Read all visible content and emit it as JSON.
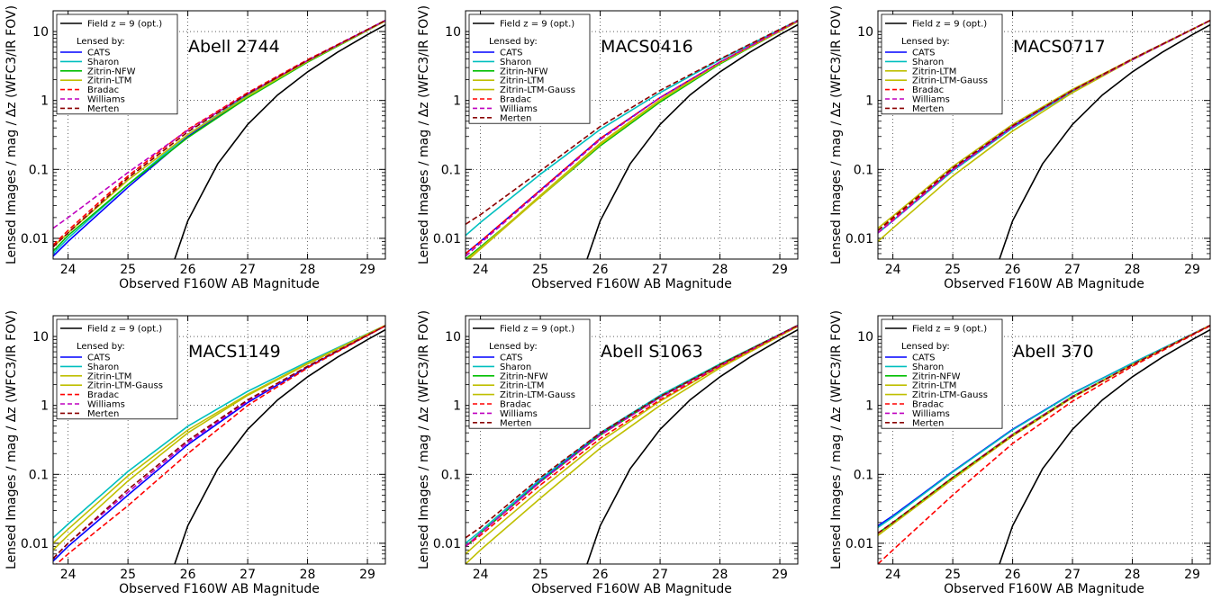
{
  "figure": {
    "xlabel": "Observed F160W AB Magnitude",
    "ylabel": "Lensed Images / mag / Δz  (WFC3/IR FOV)",
    "legend_field": "Field z = 9 (opt.)",
    "legend_header": "Lensed by:"
  },
  "chart_data": [
    {
      "type": "line",
      "title": "Abell 2744",
      "xlabel": "Observed F160W AB Magnitude",
      "ylabel": "Lensed Images / mag / Δz  (WFC3/IR FOV)",
      "xlim": [
        23.75,
        29.3
      ],
      "ylim": [
        0.005,
        20
      ],
      "yscale": "log",
      "xticks": [
        "24",
        "25",
        "26",
        "27",
        "28",
        "29"
      ],
      "yticks": [
        "0.01",
        "0.1",
        "1",
        "10"
      ],
      "grid": true,
      "legend": "top-left",
      "x": [
        23.75,
        24,
        25,
        26,
        27,
        28,
        29.3
      ],
      "field": {
        "name": "Field z = 9 (opt.)",
        "color": "#000000",
        "x": [
          25.78,
          26,
          26.5,
          27,
          27.5,
          28,
          28.5,
          29,
          29.3
        ],
        "values": [
          0.005,
          0.018,
          0.12,
          0.45,
          1.2,
          2.6,
          5.0,
          9.0,
          12.5
        ]
      },
      "series": [
        {
          "name": "CATS",
          "color": "#0000ff",
          "dash": false,
          "values": [
            0.0055,
            0.009,
            0.055,
            0.3,
            1.15,
            3.7,
            14.5
          ]
        },
        {
          "name": "Sharon",
          "color": "#00bfbf",
          "dash": false,
          "values": [
            0.006,
            0.01,
            0.06,
            0.32,
            1.2,
            3.8,
            14.5
          ]
        },
        {
          "name": "Zitrin-NFW",
          "color": "#00bf00",
          "dash": false,
          "values": [
            0.0065,
            0.011,
            0.06,
            0.29,
            1.1,
            3.6,
            14.3
          ]
        },
        {
          "name": "Zitrin-LTM",
          "color": "#bfbf00",
          "dash": false,
          "values": [
            0.0075,
            0.012,
            0.07,
            0.32,
            1.15,
            3.7,
            14.3
          ]
        },
        {
          "name": "Bradac",
          "color": "#ff0000",
          "dash": true,
          "values": [
            0.008,
            0.013,
            0.08,
            0.38,
            1.3,
            3.9,
            14.5
          ]
        },
        {
          "name": "Williams",
          "color": "#bf00bf",
          "dash": true,
          "values": [
            0.014,
            0.02,
            0.09,
            0.37,
            1.25,
            3.8,
            14.5
          ]
        },
        {
          "name": "Merten",
          "color": "#8b0000",
          "dash": true,
          "values": [
            0.0075,
            0.012,
            0.075,
            0.35,
            1.25,
            3.8,
            14.5
          ]
        }
      ]
    },
    {
      "type": "line",
      "title": "MACS0416",
      "xlabel": "Observed F160W AB Magnitude",
      "ylabel": "Lensed Images / mag / Δz  (WFC3/IR FOV)",
      "xlim": [
        23.75,
        29.3
      ],
      "ylim": [
        0.005,
        20
      ],
      "yscale": "log",
      "xticks": [
        "24",
        "25",
        "26",
        "27",
        "28",
        "29"
      ],
      "yticks": [
        "0.01",
        "0.1",
        "1",
        "10"
      ],
      "grid": true,
      "legend": "top-left",
      "x": [
        23.75,
        24,
        25,
        26,
        27,
        28,
        29.3
      ],
      "field": {
        "name": "Field z = 9 (opt.)",
        "color": "#000000",
        "x": [
          25.78,
          26,
          26.5,
          27,
          27.5,
          28,
          28.5,
          29,
          29.3
        ],
        "values": [
          0.005,
          0.018,
          0.12,
          0.45,
          1.2,
          2.6,
          5.0,
          9.0,
          12.5
        ]
      },
      "series": [
        {
          "name": "CATS",
          "color": "#0000ff",
          "dash": false,
          "values": [
            0.006,
            0.009,
            0.05,
            0.28,
            1.1,
            3.6,
            14.3
          ]
        },
        {
          "name": "Sharon",
          "color": "#00bfbf",
          "dash": false,
          "values": [
            0.011,
            0.017,
            0.085,
            0.38,
            1.3,
            3.9,
            14.5
          ]
        },
        {
          "name": "Zitrin-NFW",
          "color": "#00bf00",
          "dash": false,
          "values": [
            0.005,
            0.0075,
            0.04,
            0.22,
            0.95,
            3.4,
            14.0
          ]
        },
        {
          "name": "Zitrin-LTM",
          "color": "#bfbf00",
          "dash": false,
          "values": [
            0.0045,
            0.007,
            0.04,
            0.23,
            1.0,
            3.5,
            14.0
          ]
        },
        {
          "name": "Zitrin-LTM-Gauss",
          "color": "#bfbf00",
          "dash": false,
          "values": [
            0.0048,
            0.0072,
            0.042,
            0.24,
            1.02,
            3.5,
            14.0
          ]
        },
        {
          "name": "Bradac",
          "color": "#ff0000",
          "dash": true,
          "values": [
            0.006,
            0.009,
            0.05,
            0.28,
            1.1,
            3.6,
            14.3
          ]
        },
        {
          "name": "Williams",
          "color": "#bf00bf",
          "dash": true,
          "values": [
            0.0055,
            0.0085,
            0.048,
            0.27,
            1.1,
            3.6,
            14.3
          ]
        },
        {
          "name": "Merten",
          "color": "#8b0000",
          "dash": true,
          "values": [
            0.016,
            0.022,
            0.095,
            0.42,
            1.4,
            4.0,
            14.5
          ]
        }
      ]
    },
    {
      "type": "line",
      "title": "MACS0717",
      "xlabel": "Observed F160W AB Magnitude",
      "ylabel": "Lensed Images / mag / Δz  (WFC3/IR FOV)",
      "xlim": [
        23.75,
        29.3
      ],
      "ylim": [
        0.005,
        20
      ],
      "yscale": "log",
      "xticks": [
        "24",
        "25",
        "26",
        "27",
        "28",
        "29"
      ],
      "yticks": [
        "0.01",
        "0.1",
        "1",
        "10"
      ],
      "grid": true,
      "legend": "top-left",
      "x": [
        23.75,
        24,
        25,
        26,
        27,
        28,
        29.3
      ],
      "field": {
        "name": "Field z = 9 (opt.)",
        "color": "#000000",
        "x": [
          25.78,
          26,
          26.5,
          27,
          27.5,
          28,
          28.5,
          29,
          29.3
        ],
        "values": [
          0.005,
          0.018,
          0.12,
          0.45,
          1.2,
          2.6,
          5.0,
          9.0,
          12.5
        ]
      },
      "series": [
        {
          "name": "CATS",
          "color": "#0000ff",
          "dash": false,
          "values": [
            0.012,
            0.018,
            0.1,
            0.42,
            1.4,
            4.0,
            14.5
          ]
        },
        {
          "name": "Sharon",
          "color": "#00bfbf",
          "dash": false,
          "values": [
            0.012,
            0.018,
            0.095,
            0.4,
            1.35,
            3.9,
            14.5
          ]
        },
        {
          "name": "Zitrin-LTM",
          "color": "#bfbf00",
          "dash": false,
          "values": [
            0.014,
            0.021,
            0.11,
            0.45,
            1.45,
            4.0,
            14.5
          ]
        },
        {
          "name": "Zitrin-LTM-Gauss",
          "color": "#bfbf00",
          "dash": false,
          "values": [
            0.009,
            0.014,
            0.08,
            0.36,
            1.3,
            3.9,
            14.5
          ]
        },
        {
          "name": "Bradac",
          "color": "#ff0000",
          "dash": true,
          "values": [
            0.013,
            0.019,
            0.1,
            0.42,
            1.4,
            4.0,
            14.5
          ]
        },
        {
          "name": "Williams",
          "color": "#bf00bf",
          "dash": true,
          "values": [
            0.012,
            0.018,
            0.098,
            0.41,
            1.38,
            3.9,
            14.5
          ]
        },
        {
          "name": "Merten",
          "color": "#8b0000",
          "dash": true,
          "values": [
            0.013,
            0.02,
            0.105,
            0.43,
            1.4,
            4.0,
            14.5
          ]
        }
      ]
    },
    {
      "type": "line",
      "title": "MACS1149",
      "xlabel": "Observed F160W AB Magnitude",
      "ylabel": "Lensed Images / mag / Δz  (WFC3/IR FOV)",
      "xlim": [
        23.75,
        29.3
      ],
      "ylim": [
        0.005,
        20
      ],
      "yscale": "log",
      "xticks": [
        "24",
        "25",
        "26",
        "27",
        "28",
        "29"
      ],
      "yticks": [
        "0.01",
        "0.1",
        "1",
        "10"
      ],
      "grid": true,
      "legend": "top-left",
      "x": [
        23.75,
        24,
        25,
        26,
        27,
        28,
        29.3
      ],
      "field": {
        "name": "Field z = 9 (opt.)",
        "color": "#000000",
        "x": [
          25.78,
          26,
          26.5,
          27,
          27.5,
          28,
          28.5,
          29,
          29.3
        ],
        "values": [
          0.005,
          0.018,
          0.12,
          0.45,
          1.2,
          2.6,
          5.0,
          9.0,
          12.5
        ]
      },
      "series": [
        {
          "name": "CATS",
          "color": "#0000ff",
          "dash": false,
          "values": [
            0.0055,
            0.009,
            0.05,
            0.27,
            1.1,
            3.6,
            14.3
          ]
        },
        {
          "name": "Sharon",
          "color": "#00bfbf",
          "dash": false,
          "values": [
            0.012,
            0.019,
            0.11,
            0.5,
            1.6,
            4.3,
            14.5
          ]
        },
        {
          "name": "Zitrin-LTM",
          "color": "#bfbf00",
          "dash": false,
          "values": [
            0.01,
            0.016,
            0.095,
            0.44,
            1.45,
            4.1,
            14.5
          ]
        },
        {
          "name": "Zitrin-LTM-Gauss",
          "color": "#bfbf00",
          "dash": false,
          "values": [
            0.008,
            0.013,
            0.08,
            0.4,
            1.4,
            4.0,
            14.5
          ]
        },
        {
          "name": "Bradac",
          "color": "#ff0000",
          "dash": true,
          "values": [
            0.0045,
            0.007,
            0.035,
            0.2,
            1.0,
            3.5,
            14.3
          ]
        },
        {
          "name": "Williams",
          "color": "#bf00bf",
          "dash": true,
          "values": [
            0.006,
            0.01,
            0.055,
            0.29,
            1.15,
            3.7,
            14.3
          ]
        },
        {
          "name": "Merten",
          "color": "#8b0000",
          "dash": true,
          "values": [
            0.006,
            0.01,
            0.06,
            0.31,
            1.2,
            3.7,
            14.3
          ]
        }
      ]
    },
    {
      "type": "line",
      "title": "Abell S1063",
      "xlabel": "Observed F160W AB Magnitude",
      "ylabel": "Lensed Images / mag / Δz  (WFC3/IR FOV)",
      "xlim": [
        23.75,
        29.3
      ],
      "ylim": [
        0.005,
        20
      ],
      "yscale": "log",
      "xticks": [
        "24",
        "25",
        "26",
        "27",
        "28",
        "29"
      ],
      "yticks": [
        "0.01",
        "0.1",
        "1",
        "10"
      ],
      "grid": true,
      "legend": "top-left",
      "x": [
        23.75,
        24,
        25,
        26,
        27,
        28,
        29.3
      ],
      "field": {
        "name": "Field z = 9 (opt.)",
        "color": "#000000",
        "x": [
          25.78,
          26,
          26.5,
          27,
          27.5,
          28,
          28.5,
          29,
          29.3
        ],
        "values": [
          0.005,
          0.018,
          0.12,
          0.45,
          1.2,
          2.6,
          5.0,
          9.0,
          12.5
        ]
      },
      "series": [
        {
          "name": "CATS",
          "color": "#0000ff",
          "dash": false,
          "values": [
            0.009,
            0.014,
            0.08,
            0.38,
            1.35,
            3.9,
            14.5
          ]
        },
        {
          "name": "Sharon",
          "color": "#00bfbf",
          "dash": false,
          "values": [
            0.01,
            0.015,
            0.085,
            0.4,
            1.4,
            4.0,
            14.5
          ]
        },
        {
          "name": "Zitrin-NFW",
          "color": "#00bf00",
          "dash": false,
          "values": [
            0.009,
            0.014,
            0.078,
            0.37,
            1.32,
            3.9,
            14.5
          ]
        },
        {
          "name": "Zitrin-LTM",
          "color": "#bfbf00",
          "dash": false,
          "values": [
            0.007,
            0.011,
            0.06,
            0.3,
            1.15,
            3.7,
            14.3
          ]
        },
        {
          "name": "Zitrin-LTM-Gauss",
          "color": "#bfbf00",
          "dash": false,
          "values": [
            0.005,
            0.008,
            0.045,
            0.24,
            1.0,
            3.5,
            14.0
          ]
        },
        {
          "name": "Bradac",
          "color": "#ff0000",
          "dash": true,
          "values": [
            0.009,
            0.013,
            0.07,
            0.33,
            1.2,
            3.7,
            14.3
          ]
        },
        {
          "name": "Williams",
          "color": "#bf00bf",
          "dash": true,
          "values": [
            0.009,
            0.014,
            0.078,
            0.37,
            1.3,
            3.8,
            14.4
          ]
        },
        {
          "name": "Merten",
          "color": "#8b0000",
          "dash": true,
          "values": [
            0.012,
            0.017,
            0.09,
            0.4,
            1.35,
            3.9,
            14.5
          ]
        }
      ]
    },
    {
      "type": "line",
      "title": "Abell 370",
      "xlabel": "Observed F160W AB Magnitude",
      "ylabel": "Lensed Images / mag / Δz  (WFC3/IR FOV)",
      "xlim": [
        23.75,
        29.3
      ],
      "ylim": [
        0.005,
        20
      ],
      "yscale": "log",
      "xticks": [
        "24",
        "25",
        "26",
        "27",
        "28",
        "29"
      ],
      "yticks": [
        "0.01",
        "0.1",
        "1",
        "10"
      ],
      "grid": true,
      "legend": "top-left",
      "x": [
        23.75,
        24,
        25,
        26,
        27,
        28,
        29.3
      ],
      "field": {
        "name": "Field z = 9 (opt.)",
        "color": "#000000",
        "x": [
          25.78,
          26,
          26.5,
          27,
          27.5,
          28,
          28.5,
          29,
          29.3
        ],
        "values": [
          0.005,
          0.018,
          0.12,
          0.45,
          1.2,
          2.6,
          5.0,
          9.0,
          12.5
        ]
      },
      "series": [
        {
          "name": "CATS",
          "color": "#0000ff",
          "dash": false,
          "values": [
            0.018,
            0.025,
            0.11,
            0.45,
            1.5,
            4.1,
            14.5
          ]
        },
        {
          "name": "Sharon",
          "color": "#00bfbf",
          "dash": false,
          "values": [
            0.017,
            0.024,
            0.108,
            0.44,
            1.48,
            4.1,
            14.5
          ]
        },
        {
          "name": "Zitrin-NFW",
          "color": "#00bf00",
          "dash": false,
          "values": [
            0.014,
            0.02,
            0.09,
            0.38,
            1.35,
            3.9,
            14.5
          ]
        },
        {
          "name": "Zitrin-LTM",
          "color": "#bfbf00",
          "dash": false,
          "values": [
            0.013,
            0.019,
            0.085,
            0.37,
            1.32,
            3.9,
            14.5
          ]
        },
        {
          "name": "Zitrin-LTM-Gauss",
          "color": "#bfbf00",
          "dash": false,
          "values": [
            0.013,
            0.019,
            0.085,
            0.36,
            1.3,
            3.9,
            14.5
          ]
        },
        {
          "name": "Bradac",
          "color": "#ff0000",
          "dash": true,
          "values": [
            0.005,
            0.008,
            0.05,
            0.28,
            1.15,
            3.7,
            14.3
          ]
        },
        {
          "name": "Williams",
          "color": "#bf00bf",
          "dash": true,
          "values": [
            0.014,
            0.02,
            0.09,
            0.38,
            1.35,
            3.9,
            14.5
          ]
        },
        {
          "name": "Merten",
          "color": "#8b0000",
          "dash": true,
          "values": [
            0.014,
            0.02,
            0.09,
            0.37,
            1.32,
            3.9,
            14.5
          ]
        }
      ]
    }
  ]
}
